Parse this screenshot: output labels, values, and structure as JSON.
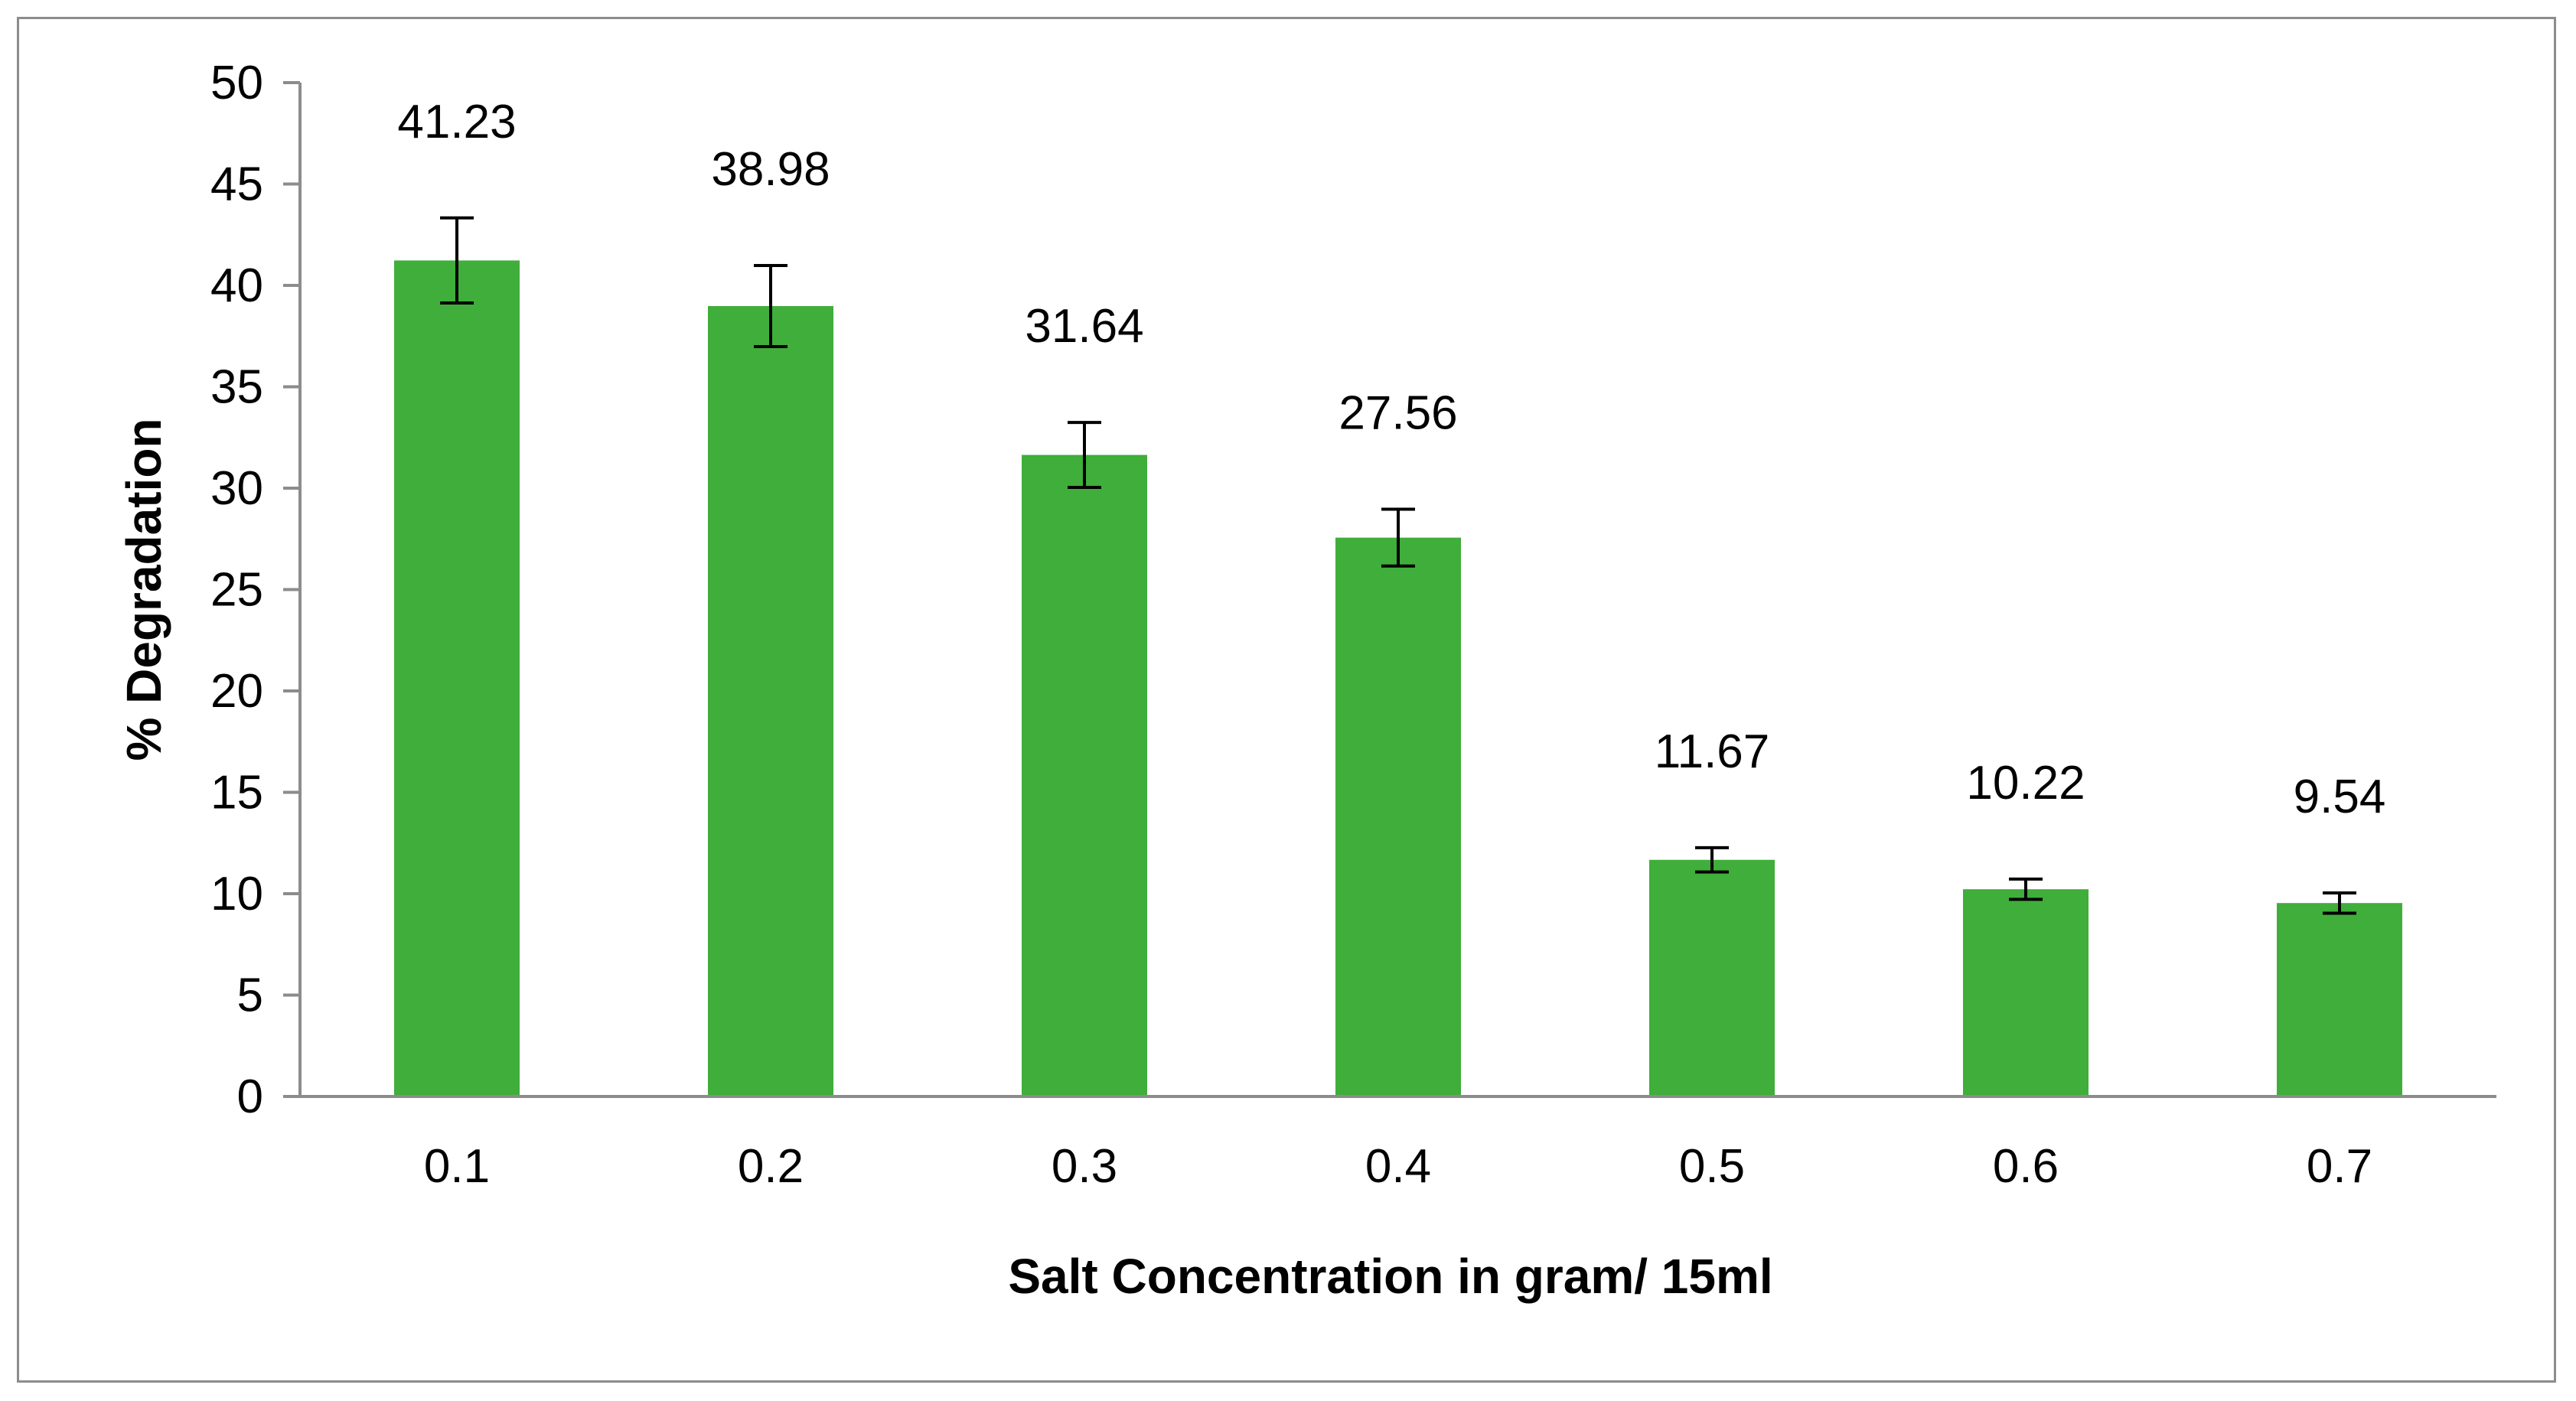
{
  "chart_data": {
    "type": "bar",
    "title": "",
    "xlabel": "Salt Concentration in gram/ 15ml",
    "ylabel": "% Degradation",
    "categories": [
      "0.1",
      "0.2",
      "0.3",
      "0.4",
      "0.5",
      "0.6",
      "0.7"
    ],
    "values": [
      41.23,
      38.98,
      31.64,
      27.56,
      11.67,
      10.22,
      9.54
    ],
    "data_labels": [
      "41.23",
      "38.98",
      "31.64",
      "27.56",
      "11.67",
      "10.22",
      "9.54"
    ],
    "error": [
      2.1,
      2.0,
      1.6,
      1.4,
      0.6,
      0.5,
      0.5
    ],
    "ylim": [
      0,
      50
    ],
    "yticks": [
      "0",
      "5",
      "10",
      "15",
      "20",
      "25",
      "30",
      "35",
      "40",
      "45",
      "50"
    ],
    "grid": false,
    "legend": "none",
    "bar_color": "#3fae3a",
    "axis_color": "#8c8c8c"
  }
}
